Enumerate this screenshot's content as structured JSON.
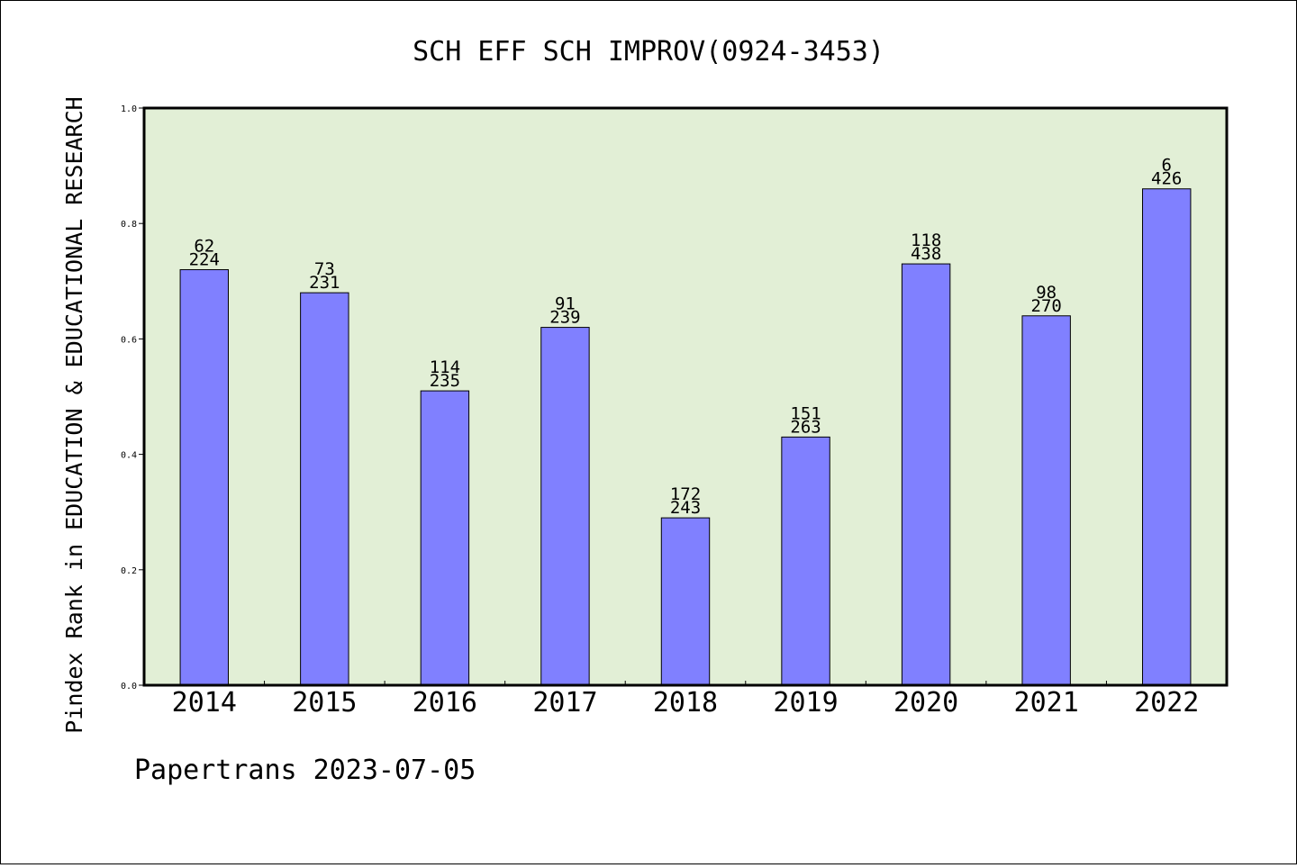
{
  "chart_data": {
    "type": "bar",
    "title": "SCH EFF SCH IMPROV(0924-3453)",
    "xlabel": "",
    "ylabel": "Pindex Rank in EDUCATION & EDUCATIONAL RESEARCH",
    "categories": [
      "2014",
      "2015",
      "2016",
      "2017",
      "2018",
      "2019",
      "2020",
      "2021",
      "2022"
    ],
    "values": [
      0.72,
      0.68,
      0.51,
      0.62,
      0.29,
      0.43,
      0.73,
      0.64,
      0.86
    ],
    "rank_labels": [
      "62",
      "73",
      "114",
      "91",
      "172",
      "151",
      "118",
      "98",
      "6"
    ],
    "total_labels": [
      "224",
      "231",
      "235",
      "239",
      "243",
      "263",
      "438",
      "270",
      "426"
    ],
    "ylim": [
      0,
      1.0
    ],
    "yticks": [
      "0.0",
      "0.2",
      "0.4",
      "0.6",
      "0.8",
      "1.0"
    ],
    "grid": false,
    "legend": "none",
    "colors": {
      "bar": "#8080ff",
      "plot_background": "#e2efd6",
      "axis": "#000000"
    }
  },
  "footer": {
    "credit": "Papertrans 2023-07-05"
  }
}
